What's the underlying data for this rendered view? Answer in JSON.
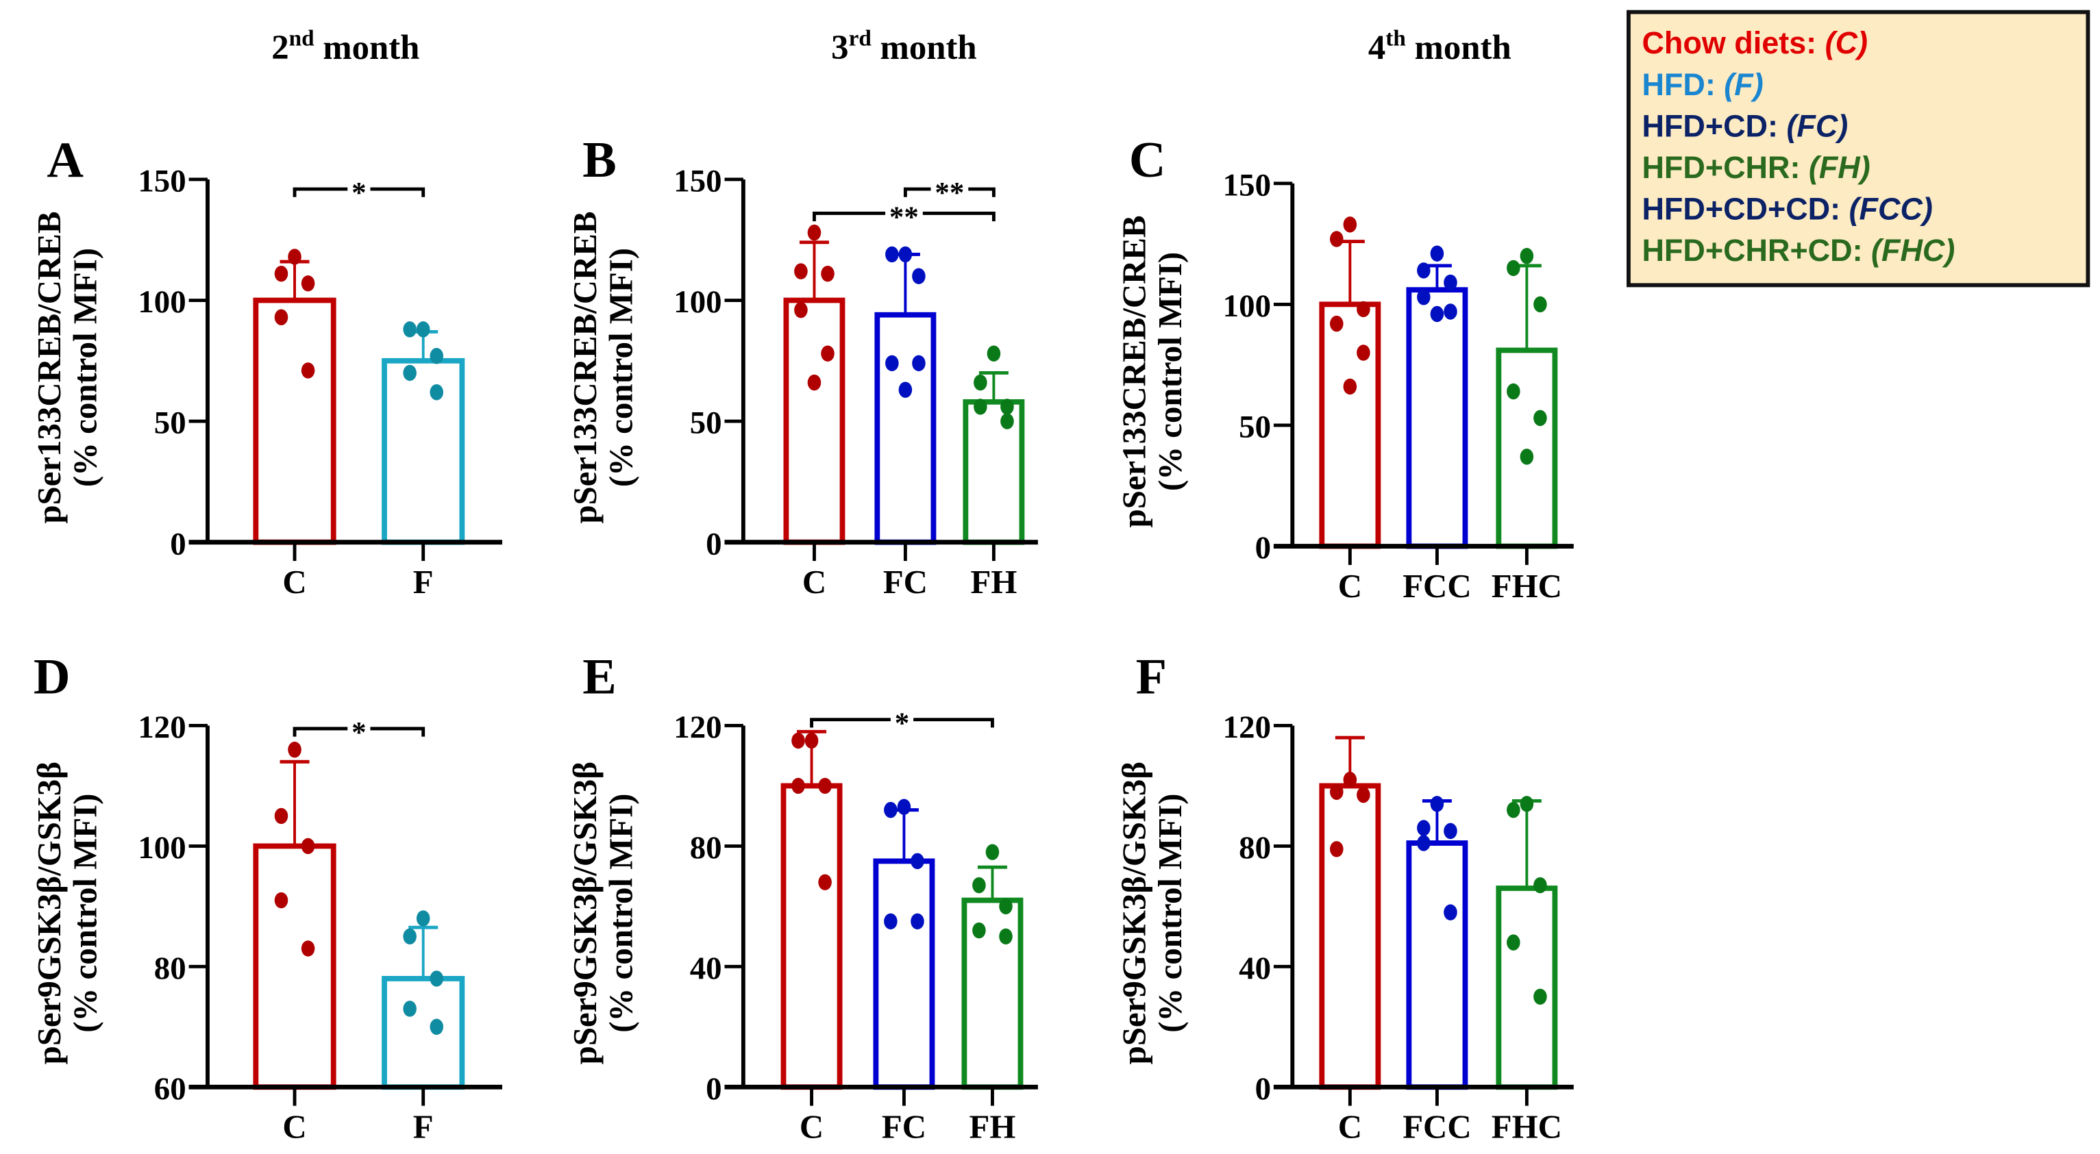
{
  "month_titles": [
    {
      "num": "2",
      "sup": "nd",
      "word": " month"
    },
    {
      "num": "3",
      "sup": "rd",
      "word": " month"
    },
    {
      "num": "4",
      "sup": "th",
      "word": " month"
    }
  ],
  "legend": {
    "background": "#fdebc4",
    "entries": [
      {
        "label": "Chow diets: ",
        "abbr": "(C)",
        "color": "#e00000"
      },
      {
        "label": "HFD: ",
        "abbr": "(F)",
        "color": "#1a86d0"
      },
      {
        "label": "HFD+CD: ",
        "abbr": "(FC)",
        "color": "#0b2266"
      },
      {
        "label": "HFD+CHR: ",
        "abbr": "(FH)",
        "color": "#2a6a1e"
      },
      {
        "label": "HFD+CD+CD: ",
        "abbr": "(FCC)",
        "color": "#0b2266"
      },
      {
        "label": "HFD+CHR+CD: ",
        "abbr": "(FHC)",
        "color": "#2a6a1e"
      }
    ]
  },
  "chart_data": [
    {
      "panel": "A",
      "type": "bar",
      "title": "2nd month",
      "ylabel": [
        "pSer133CREB/CREB",
        "(% control MFI)"
      ],
      "ylim": [
        0,
        150
      ],
      "yticks": [
        0,
        50,
        100,
        150
      ],
      "categories": [
        "C",
        "F"
      ],
      "means": [
        100,
        75
      ],
      "error_top": [
        116,
        87
      ],
      "points": [
        [
          118,
          111,
          107,
          93,
          71
        ],
        [
          88,
          88,
          77,
          70,
          62
        ]
      ],
      "bar_colors": [
        "#c00000",
        "#1aa6c4"
      ],
      "dot_colors": [
        "#b00000",
        "#108ca2"
      ],
      "significance": [
        {
          "from": 0,
          "to": 1,
          "label": "*",
          "value": 146
        }
      ]
    },
    {
      "panel": "B",
      "type": "bar",
      "title": "3rd month",
      "ylabel": [
        "pSer133CREB/CREB",
        "(% control MFI)"
      ],
      "ylim": [
        0,
        150
      ],
      "yticks": [
        0,
        50,
        100,
        150
      ],
      "categories": [
        "C",
        "FC",
        "FH"
      ],
      "means": [
        100,
        94,
        58
      ],
      "error_top": [
        124,
        119,
        70
      ],
      "points": [
        [
          128,
          112,
          111,
          96,
          78,
          66
        ],
        [
          119,
          119,
          110,
          74,
          74,
          63
        ],
        [
          78,
          66,
          56,
          56,
          50
        ]
      ],
      "bar_colors": [
        "#c00000",
        "#0000d0",
        "#108a20"
      ],
      "dot_colors": [
        "#b00000",
        "#0010c0",
        "#0a7a18"
      ],
      "significance": [
        {
          "from": 1,
          "to": 2,
          "label": "**",
          "value": 146
        },
        {
          "from": 0,
          "to": 2,
          "label": "**",
          "value": 136
        }
      ]
    },
    {
      "panel": "C",
      "type": "bar",
      "title": "4th month",
      "ylabel": [
        "pSer133CREB/CREB",
        "(% control MFI)"
      ],
      "ylim": [
        0,
        150
      ],
      "yticks": [
        0,
        50,
        100,
        150
      ],
      "categories": [
        "C",
        "FCC",
        "FHC"
      ],
      "means": [
        100,
        106,
        81
      ],
      "error_top": [
        126,
        116,
        116
      ],
      "points": [
        [
          133,
          127,
          98,
          92,
          80,
          66
        ],
        [
          121,
          114,
          109,
          103,
          97,
          96
        ],
        [
          120,
          115,
          100,
          64,
          53,
          37
        ]
      ],
      "bar_colors": [
        "#c00000",
        "#0000d0",
        "#108a20"
      ],
      "dot_colors": [
        "#b00000",
        "#0010c0",
        "#0a7a18"
      ],
      "significance": []
    },
    {
      "panel": "D",
      "type": "bar",
      "title": "2nd month",
      "ylabel": [
        "pSer9GSK3β/GSK3β",
        "(% control MFI)"
      ],
      "ylim": [
        60,
        120
      ],
      "yticks": [
        60,
        80,
        100,
        120
      ],
      "categories": [
        "C",
        "F"
      ],
      "means": [
        100,
        78
      ],
      "error_top": [
        114,
        86.5
      ],
      "points": [
        [
          116,
          105,
          100,
          91,
          83
        ],
        [
          88,
          85,
          78,
          73,
          70
        ]
      ],
      "bar_colors": [
        "#c00000",
        "#1aa6c4"
      ],
      "dot_colors": [
        "#b00000",
        "#108ca2"
      ],
      "significance": [
        {
          "from": 0,
          "to": 1,
          "label": "*",
          "value": 119.5
        }
      ]
    },
    {
      "panel": "E",
      "type": "bar",
      "title": "3rd month",
      "ylabel": [
        "pSer9GSK3β/GSK3β",
        "(% control MFI)"
      ],
      "ylim": [
        0,
        120
      ],
      "yticks": [
        0,
        40,
        80,
        120
      ],
      "categories": [
        "C",
        "FC",
        "FH"
      ],
      "means": [
        100,
        75,
        62
      ],
      "error_top": [
        118,
        92,
        73
      ],
      "points": [
        [
          115,
          115,
          100,
          100,
          68
        ],
        [
          93,
          92,
          75,
          55,
          55
        ],
        [
          78,
          67,
          60,
          52,
          50
        ]
      ],
      "bar_colors": [
        "#c00000",
        "#0000d0",
        "#108a20"
      ],
      "dot_colors": [
        "#b00000",
        "#0010c0",
        "#0a7a18"
      ],
      "significance": [
        {
          "from": 0,
          "to": 2,
          "label": "*",
          "value": 122
        }
      ]
    },
    {
      "panel": "F",
      "type": "bar",
      "title": "4th month",
      "ylabel": [
        "pSer9GSK3β/GSK3β",
        "(% control MFI)"
      ],
      "ylim": [
        0,
        120
      ],
      "yticks": [
        0,
        40,
        80,
        120
      ],
      "categories": [
        "C",
        "FCC",
        "FHC"
      ],
      "means": [
        100,
        81,
        66
      ],
      "error_top": [
        116,
        95,
        95
      ],
      "points": [
        [
          102,
          98,
          97,
          79
        ],
        [
          94,
          86,
          85,
          81,
          58
        ],
        [
          94,
          92,
          67,
          48,
          30
        ]
      ],
      "bar_colors": [
        "#c00000",
        "#0000d0",
        "#108a20"
      ],
      "dot_colors": [
        "#b00000",
        "#0010c0",
        "#0a7a18"
      ],
      "significance": []
    }
  ]
}
